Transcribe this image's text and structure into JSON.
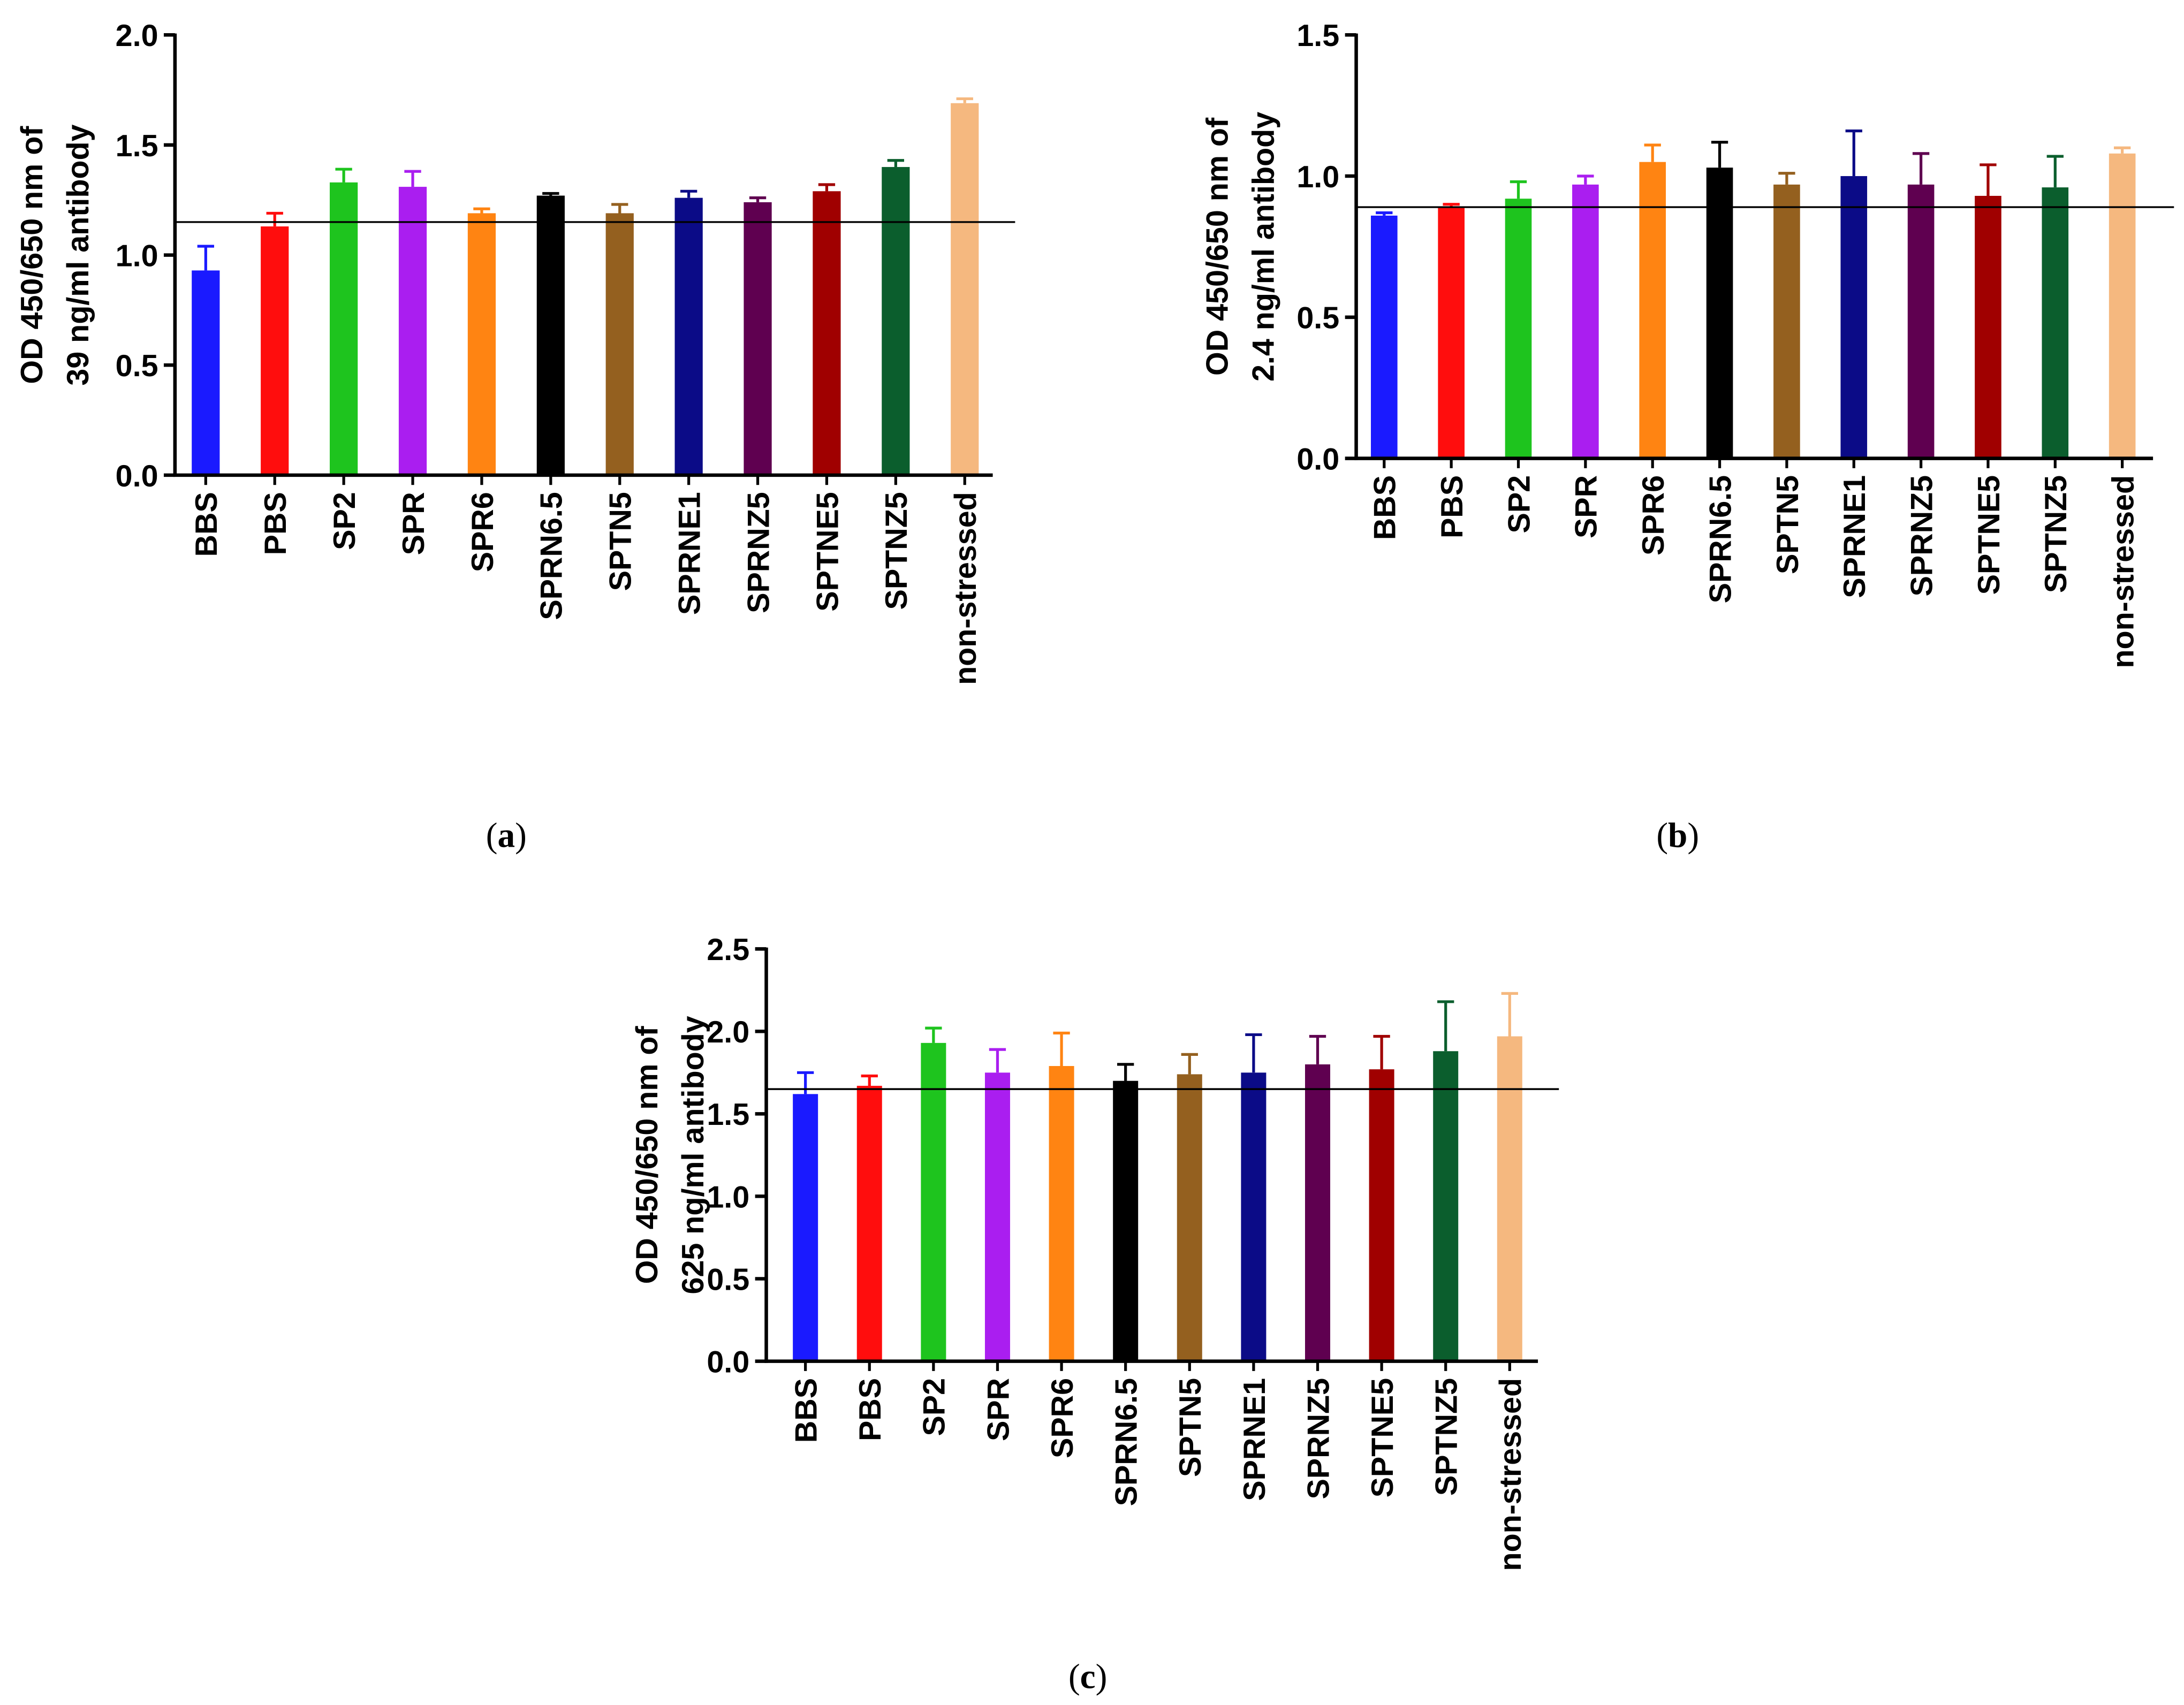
{
  "bar_colors": [
    "#1a1aff",
    "#ff0d0d",
    "#1ec41e",
    "#aa1ef0",
    "#ff8412",
    "#000000",
    "#94601f",
    "#0b0b87",
    "#5f0050",
    "#a00000",
    "#0b5e2d",
    "#f5b87f"
  ],
  "chart_data": [
    {
      "type": "bar",
      "caption": "(a)",
      "categories": [
        "BBS",
        "PBS",
        "SP2",
        "SPR",
        "SPR6",
        "SPRN6.5",
        "SPTN5",
        "SPRNE1",
        "SPRNZ5",
        "SPTNE5",
        "SPTNZ5",
        "non-stressed"
      ],
      "values": [
        0.93,
        1.13,
        1.33,
        1.31,
        1.19,
        1.27,
        1.19,
        1.26,
        1.24,
        1.29,
        1.4,
        1.69
      ],
      "error_plus": [
        0.11,
        0.06,
        0.06,
        0.07,
        0.02,
        0.01,
        0.04,
        0.03,
        0.02,
        0.03,
        0.03,
        0.02
      ],
      "reference_line": 1.15,
      "ylabel": [
        "OD 450/650 nm of",
        "39 ng/ml antibody"
      ],
      "ylim": [
        0,
        2.0
      ],
      "yticks": [
        "0.0",
        "0.5",
        "1.0",
        "1.5",
        "2.0"
      ]
    },
    {
      "type": "bar",
      "caption": "(b)",
      "categories": [
        "BBS",
        "PBS",
        "SP2",
        "SPR",
        "SPR6",
        "SPRN6.5",
        "SPTN5",
        "SPRNE1",
        "SPRNZ5",
        "SPTNE5",
        "SPTNZ5",
        "non-stressed"
      ],
      "values": [
        0.86,
        0.89,
        0.92,
        0.97,
        1.05,
        1.03,
        0.97,
        1.0,
        0.97,
        0.93,
        0.96,
        1.08
      ],
      "error_plus": [
        0.01,
        0.01,
        0.06,
        0.03,
        0.06,
        0.09,
        0.04,
        0.16,
        0.11,
        0.11,
        0.11,
        0.02
      ],
      "reference_line": 0.89,
      "ylabel": [
        "OD 450/650 nm of",
        "2.4 ng/ml antibody"
      ],
      "ylim": [
        0,
        1.5
      ],
      "yticks": [
        "0.0",
        "0.5",
        "1.0",
        "1.5"
      ]
    },
    {
      "type": "bar",
      "caption": "(c)",
      "categories": [
        "BBS",
        "PBS",
        "SP2",
        "SPR",
        "SPR6",
        "SPRN6.5",
        "SPTN5",
        "SPRNE1",
        "SPRNZ5",
        "SPTNE5",
        "SPTNZ5",
        "non-stressed"
      ],
      "values": [
        1.62,
        1.67,
        1.93,
        1.75,
        1.79,
        1.7,
        1.74,
        1.75,
        1.8,
        1.77,
        1.88,
        1.97
      ],
      "error_plus": [
        0.13,
        0.06,
        0.09,
        0.14,
        0.2,
        0.1,
        0.12,
        0.23,
        0.17,
        0.2,
        0.3,
        0.26
      ],
      "reference_line": 1.65,
      "ylabel": [
        "OD 450/650 nm of",
        "625 ng/ml antibody"
      ],
      "ylim": [
        0,
        2.5
      ],
      "yticks": [
        "0.0",
        "0.5",
        "1.0",
        "1.5",
        "2.0",
        "2.5"
      ]
    }
  ]
}
